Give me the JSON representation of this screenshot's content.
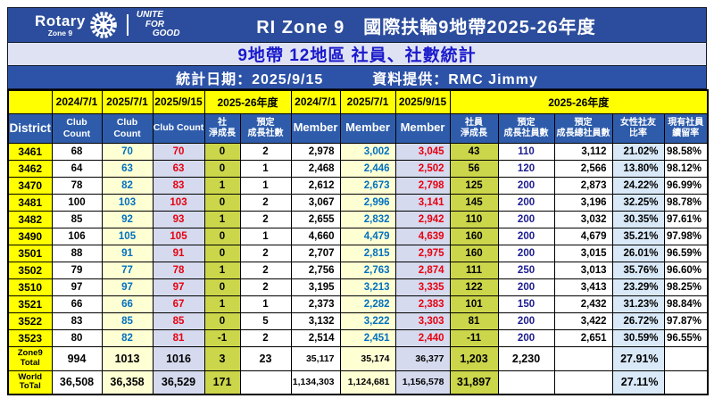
{
  "banner": {
    "logo": {
      "brand": "Rotary",
      "sub": "Zone 9",
      "tagline": [
        "UNITE",
        "FOR",
        "GOOD"
      ],
      "wheel_icon": "rotary-wheel"
    },
    "title": "RI Zone 9　國際扶輪9地帶2025-26年度",
    "subtitle": "9地帶 12地區 社員、社數統計",
    "info_date": "統計日期：2025/9/15",
    "info_provider": "資料提供：RMC Jimmy"
  },
  "table": {
    "period": {
      "p1": "2024/7/1",
      "p2": "2025/7/1",
      "p3": "2025/9/15",
      "p4": "2025-26年度",
      "p5": "2024/7/1",
      "p6": "2025/7/1",
      "p7": "2025/9/15",
      "p8": "2025-26年度"
    },
    "headers": [
      "District",
      "Club Count",
      "Club Count",
      "Club Count",
      "社\n淨成長",
      "預定\n成長社數",
      "Member",
      "Member",
      "Member",
      "社員\n淨成長",
      "預定\n成長社員數",
      "預定\n成長總社員數",
      "女性社友\n比率",
      "現有社員\n續留率"
    ],
    "rows": [
      [
        "3461",
        "68",
        "70",
        "70",
        "0",
        "2",
        "2,978",
        "3,002",
        "3,045",
        "43",
        "110",
        "3,112",
        "21.02%",
        "98.58%"
      ],
      [
        "3462",
        "64",
        "63",
        "63",
        "0",
        "1",
        "2,468",
        "2,446",
        "2,502",
        "56",
        "120",
        "2,566",
        "13.80%",
        "98.12%"
      ],
      [
        "3470",
        "78",
        "82",
        "83",
        "1",
        "1",
        "2,612",
        "2,673",
        "2,798",
        "125",
        "200",
        "2,873",
        "24.22%",
        "96.99%"
      ],
      [
        "3481",
        "100",
        "103",
        "103",
        "0",
        "2",
        "3,067",
        "2,996",
        "3,141",
        "145",
        "200",
        "3,196",
        "32.25%",
        "98.78%"
      ],
      [
        "3482",
        "85",
        "92",
        "93",
        "1",
        "2",
        "2,655",
        "2,832",
        "2,942",
        "110",
        "200",
        "3,032",
        "30.35%",
        "97.61%"
      ],
      [
        "3490",
        "106",
        "105",
        "105",
        "0",
        "1",
        "4,660",
        "4,479",
        "4,639",
        "160",
        "200",
        "4,679",
        "35.21%",
        "97.98%"
      ],
      [
        "3501",
        "88",
        "91",
        "91",
        "0",
        "2",
        "2,707",
        "2,815",
        "2,975",
        "160",
        "200",
        "3,015",
        "26.01%",
        "96.59%"
      ],
      [
        "3502",
        "79",
        "77",
        "78",
        "1",
        "2",
        "2,756",
        "2,763",
        "2,874",
        "111",
        "250",
        "3,013",
        "35.76%",
        "96.60%"
      ],
      [
        "3510",
        "97",
        "97",
        "97",
        "0",
        "2",
        "3,195",
        "3,213",
        "3,335",
        "122",
        "200",
        "3,413",
        "23.29%",
        "98.25%"
      ],
      [
        "3521",
        "66",
        "66",
        "67",
        "1",
        "1",
        "2,373",
        "2,282",
        "2,383",
        "101",
        "150",
        "2,432",
        "31.23%",
        "98.84%"
      ],
      [
        "3522",
        "83",
        "85",
        "85",
        "0",
        "5",
        "3,132",
        "3,222",
        "3,303",
        "81",
        "200",
        "3,422",
        "26.72%",
        "97.87%"
      ],
      [
        "3523",
        "80",
        "82",
        "81",
        "-1",
        "2",
        "2,514",
        "2,451",
        "2,440",
        "-11",
        "200",
        "2,651",
        "30.59%",
        "96.55%"
      ]
    ],
    "totals": [
      [
        "Zone9\nTotal",
        "994",
        "1013",
        "1016",
        "3",
        "23",
        "35,117",
        "35,174",
        "36,377",
        "1,203",
        "2,230",
        "",
        "27.91%",
        ""
      ],
      [
        "World\nToTal",
        "36,508",
        "36,358",
        "36,529",
        "171",
        "",
        "1,134,303",
        "1,124,681",
        "1,156,578",
        "31,897",
        "",
        "",
        "27.11%",
        ""
      ]
    ]
  },
  "colors": {
    "banner_blue": "#2c4d9d",
    "subtitle_bg": "#dfe2f2",
    "subtitle_text": "#1a1acc",
    "header_blue": "#2e5cab",
    "yellow": "#ffff00",
    "ivory_col": "#ffffd4",
    "lavender_col": "#d5daee",
    "chartreuse_col": "#ccd64a",
    "light_blue_col": "#d9e9f8",
    "text_blue": "#0070c0",
    "text_red": "#e8000f",
    "text_navy": "#1c1c90"
  }
}
